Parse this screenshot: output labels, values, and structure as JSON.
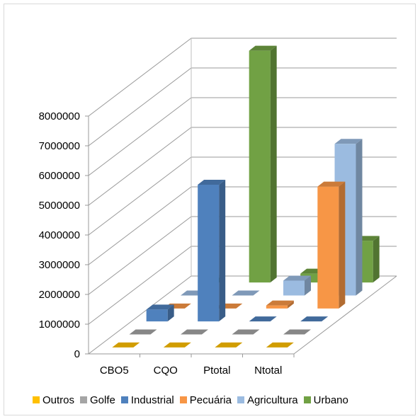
{
  "chart_data": {
    "type": "bar",
    "subtype": "3d-clustered-depth",
    "categories": [
      "CBO5",
      "CQO",
      "Ptotal",
      "Ntotal"
    ],
    "series": [
      {
        "name": "Outros",
        "color": "#FFC000",
        "values": [
          0,
          0,
          0,
          0
        ]
      },
      {
        "name": "Golfe",
        "color": "#A5A5A5",
        "values": [
          0,
          0,
          0,
          0
        ]
      },
      {
        "name": "Industrial",
        "color": "#4F81BD",
        "values": [
          400000,
          4600000,
          0,
          0
        ]
      },
      {
        "name": "Pecuária",
        "color": "#F79646",
        "values": [
          0,
          0,
          100000,
          4100000
        ]
      },
      {
        "name": "Agricultura",
        "color": "#9BBBE0",
        "values": [
          0,
          0,
          500000,
          5100000
        ]
      },
      {
        "name": "Urbano",
        "color": "#71A144",
        "values": [
          0,
          7800000,
          300000,
          1400000
        ]
      }
    ],
    "yaxis": {
      "min": 0,
      "max": 8000000,
      "step": 1000000,
      "ticks": [
        "0",
        "1000000",
        "2000000",
        "3000000",
        "4000000",
        "5000000",
        "6000000",
        "7000000",
        "8000000"
      ]
    },
    "grid": true,
    "legend": "bottom",
    "title": "",
    "xlabel": "",
    "ylabel": ""
  }
}
